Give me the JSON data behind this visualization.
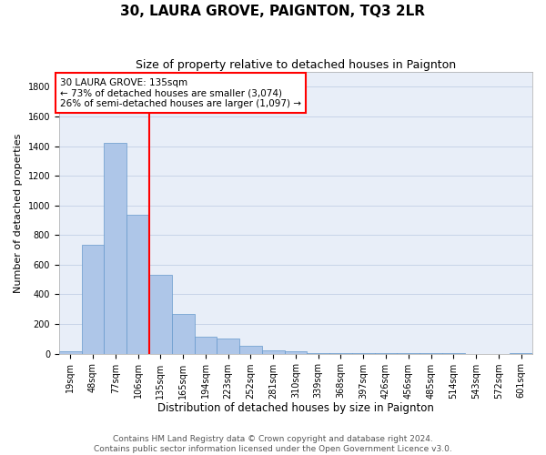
{
  "title": "30, LAURA GROVE, PAIGNTON, TQ3 2LR",
  "subtitle": "Size of property relative to detached houses in Paignton",
  "xlabel": "Distribution of detached houses by size in Paignton",
  "ylabel": "Number of detached properties",
  "footer_line1": "Contains HM Land Registry data © Crown copyright and database right 2024.",
  "footer_line2": "Contains public sector information licensed under the Open Government Licence v3.0.",
  "annotation_title": "30 LAURA GROVE: 135sqm",
  "annotation_line1": "← 73% of detached houses are smaller (3,074)",
  "annotation_line2": "26% of semi-detached houses are larger (1,097) →",
  "bar_labels": [
    "19sqm",
    "48sqm",
    "77sqm",
    "106sqm",
    "135sqm",
    "165sqm",
    "194sqm",
    "223sqm",
    "252sqm",
    "281sqm",
    "310sqm",
    "339sqm",
    "368sqm",
    "397sqm",
    "426sqm",
    "456sqm",
    "485sqm",
    "514sqm",
    "543sqm",
    "572sqm",
    "601sqm"
  ],
  "bar_values": [
    18,
    735,
    1420,
    935,
    530,
    270,
    115,
    100,
    50,
    25,
    15,
    5,
    5,
    5,
    3,
    2,
    1,
    1,
    0,
    0,
    5
  ],
  "bar_color": "#aec6e8",
  "bar_edge_color": "#6699cc",
  "vline_color": "red",
  "ylim_max": 1900,
  "yticks": [
    0,
    200,
    400,
    600,
    800,
    1000,
    1200,
    1400,
    1600,
    1800
  ],
  "grid_color": "#c8d4e8",
  "background_color": "#e8eef8",
  "title_fontsize": 11,
  "subtitle_fontsize": 9,
  "axis_label_fontsize": 8,
  "tick_fontsize": 7,
  "annotation_fontsize": 7.5,
  "footer_fontsize": 6.5,
  "bin_width": 29,
  "n_bins": 21
}
